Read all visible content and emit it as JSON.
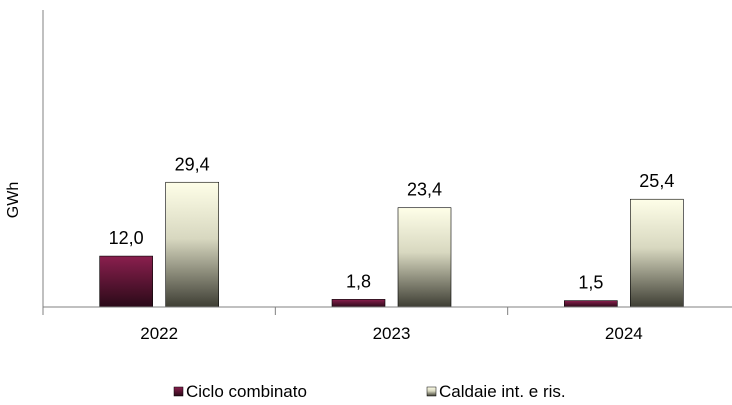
{
  "chart_data": {
    "type": "bar",
    "title": "",
    "xlabel": "",
    "ylabel": "GWh",
    "categories": [
      "2022",
      "2023",
      "2024"
    ],
    "series": [
      {
        "name": "Ciclo combinato",
        "values": [
          12.0,
          1.8,
          1.5
        ],
        "labels": [
          "12,0",
          "1,8",
          "1,5"
        ]
      },
      {
        "name": "Caldaie int. e ris.",
        "values": [
          29.4,
          23.4,
          25.4
        ],
        "labels": [
          "29,4",
          "23,4",
          "25,4"
        ]
      }
    ],
    "ylim": [
      0,
      70
    ],
    "grid": false,
    "legend_position": "bottom",
    "colors": {
      "series1_top": "#8a1f4e",
      "series1_bottom": "#2a0a18",
      "series2_top": "#fefee8",
      "series2_bottom": "#3e3e34",
      "axis": "#808080"
    }
  }
}
